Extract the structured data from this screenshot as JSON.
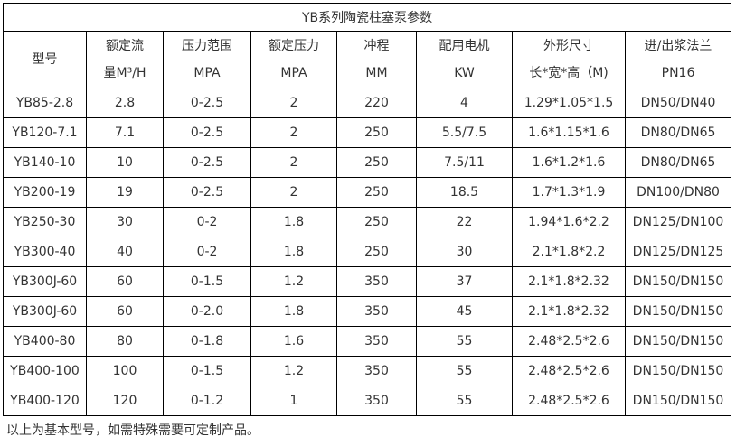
{
  "title": "YB系列陶瓷柱塞泵参数",
  "headers": [
    [
      "型号"
    ],
    [
      "额定流",
      "量M³/H"
    ],
    [
      "压力范围",
      "MPA"
    ],
    [
      "额定压力",
      "MPA"
    ],
    [
      "冲程",
      "MM"
    ],
    [
      "配用电机",
      "KW"
    ],
    [
      "外形尺寸",
      "长*宽*高（M)"
    ],
    [
      "进/出浆法兰",
      "PN16"
    ]
  ],
  "rows": [
    [
      "YB85-2.8",
      "2.8",
      "0-2.5",
      "2",
      "220",
      "4",
      "1.29*1.05*1.5",
      "DN50/DN40"
    ],
    [
      "YB120-7.1",
      "7.1",
      "0-2.5",
      "2",
      "250",
      "5.5/7.5",
      "1.6*1.15*1.6",
      "DN80/DN65"
    ],
    [
      "YB140-10",
      "10",
      "0-2.5",
      "2",
      "250",
      "7.5/11",
      "1.6*1.2*1.6",
      "DN80/DN65"
    ],
    [
      "YB200-19",
      "19",
      "0-2.5",
      "2",
      "250",
      "18.5",
      "1.7*1.3*1.9",
      "DN100/DN80"
    ],
    [
      "YB250-30",
      "30",
      "0-2",
      "1.8",
      "250",
      "22",
      "1.94*1.6*2.2",
      "DN125/DN100"
    ],
    [
      "YB300-40",
      "40",
      "0-2",
      "1.8",
      "250",
      "30",
      "2.1*1.8*2.2",
      "DN125/DN125"
    ],
    [
      "YB300J-60",
      "60",
      "0-1.5",
      "1.2",
      "350",
      "37",
      "2.1*1.8*2.32",
      "DN150/DN150"
    ],
    [
      "YB300J-60",
      "60",
      "0-2.0",
      "1.8",
      "350",
      "45",
      "2.1*1.8*2.32",
      "DN150/DN150"
    ],
    [
      "YB400-80",
      "80",
      "0-1.8",
      "1.6",
      "350",
      "55",
      "2.48*2.5*2.6",
      "DN150/DN150"
    ],
    [
      "YB400-100",
      "100",
      "0-1.5",
      "1.2",
      "350",
      "55",
      "2.48*2.5*2.6",
      "DN150/DN150"
    ],
    [
      "YB400-120",
      "120",
      "0-1.2",
      "1",
      "350",
      "55",
      "2.48*2.5*2.6",
      "DN150/DN150"
    ]
  ],
  "note": "以上为基本型号，如需特殊需要可定制产品。"
}
